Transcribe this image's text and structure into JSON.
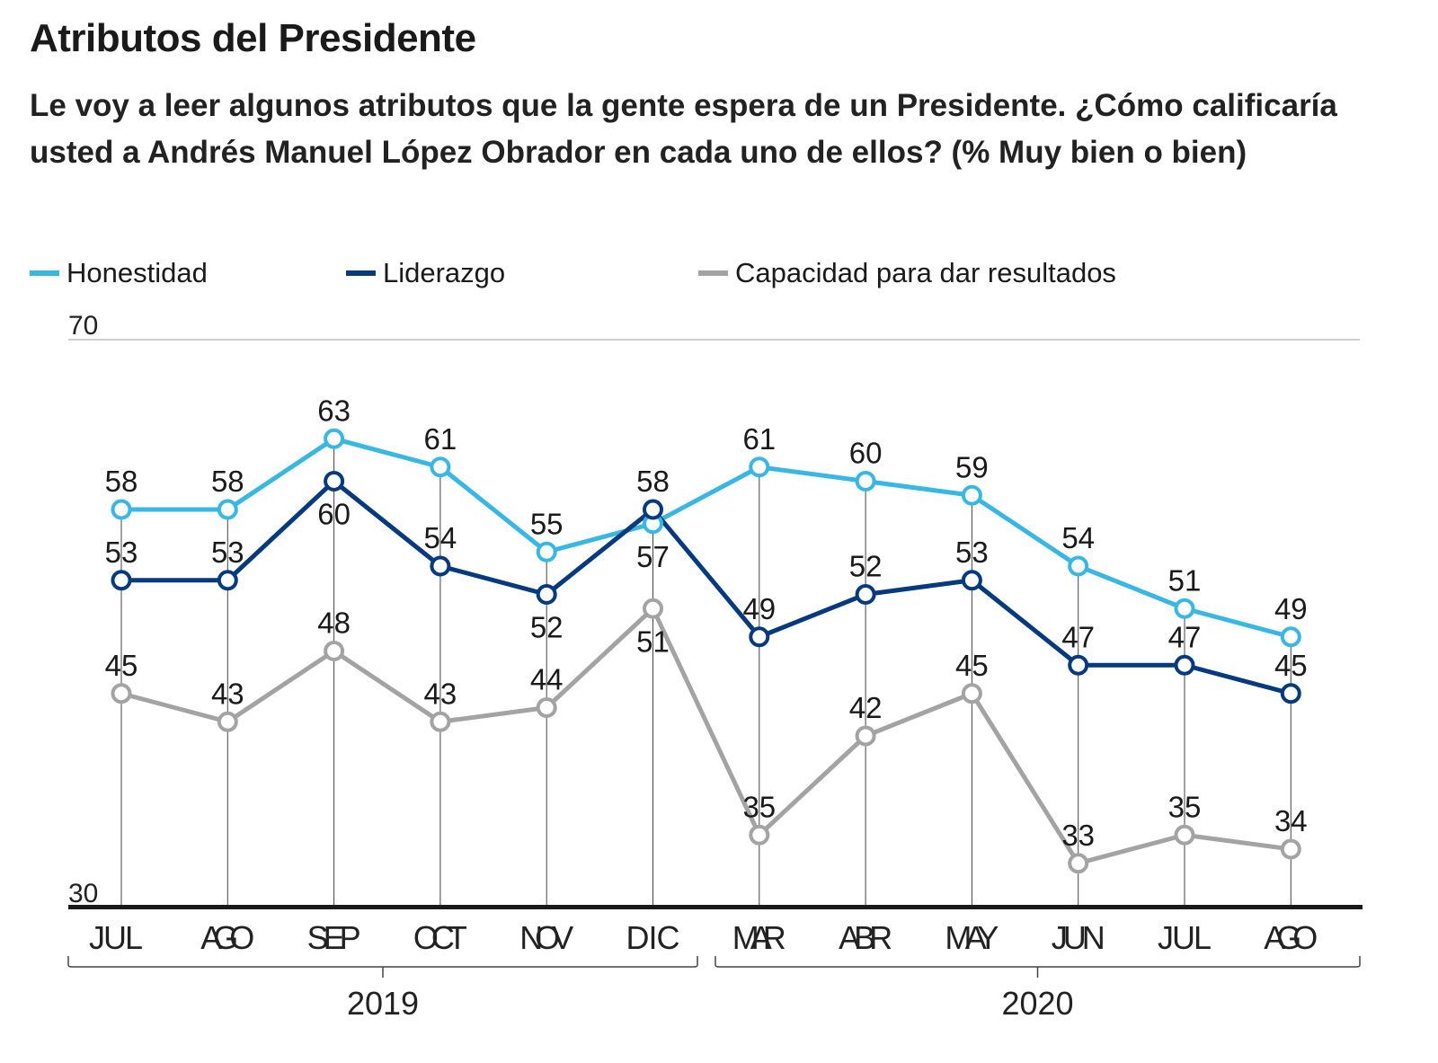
{
  "header": {
    "title": "Atributos del Presidente",
    "subtitle": "Le voy a leer algunos atributos que la gente espera de un Presidente. ¿Cómo calificaría usted a Andrés Manuel López Obrador en cada uno de ellos? (% Muy bien o bien)"
  },
  "legend": [
    {
      "name": "Honestidad",
      "color": "#38b6e4"
    },
    {
      "name": "Liderazgo",
      "color": "#063a7e"
    },
    {
      "name": "Capacidad para dar resultados",
      "color": "#a3a3a3"
    }
  ],
  "chart_data": {
    "type": "line",
    "title": "Atributos del Presidente",
    "xlabel": "",
    "ylabel": "% Muy bien o bien",
    "ylim": [
      30,
      70
    ],
    "yticks": [
      "30",
      "70"
    ],
    "grid": false,
    "legend_position": "top-left",
    "categories": [
      "JUL",
      "AGO",
      "SEP",
      "OCT",
      "NOV",
      "DIC",
      "MAR",
      "ABR",
      "MAY",
      "JUN",
      "JUL",
      "AGO"
    ],
    "year_groups": [
      {
        "label": "2019",
        "from": 0,
        "to": 5
      },
      {
        "label": "2020",
        "from": 6,
        "to": 11
      }
    ],
    "series": [
      {
        "name": "Honestidad",
        "color": "#38b6e4",
        "values": [
          58,
          58,
          63,
          61,
          55,
          57,
          61,
          60,
          59,
          54,
          51,
          49
        ]
      },
      {
        "name": "Liderazgo",
        "color": "#063a7e",
        "values": [
          53,
          53,
          60,
          54,
          52,
          58,
          49,
          52,
          53,
          47,
          47,
          45
        ]
      },
      {
        "name": "Capacidad para dar resultados",
        "color": "#a3a3a3",
        "values": [
          45,
          43,
          48,
          43,
          44,
          51,
          35,
          42,
          45,
          33,
          35,
          34
        ]
      }
    ]
  }
}
